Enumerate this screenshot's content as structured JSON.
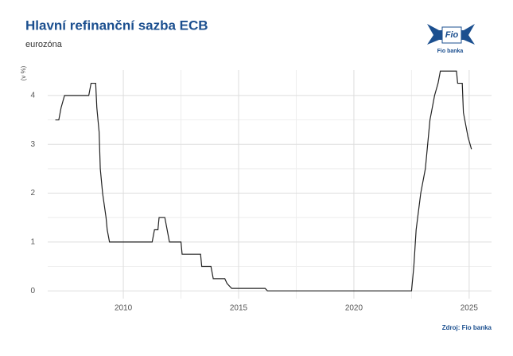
{
  "chart_data": {
    "type": "line",
    "title": "Hlavní refinanční sazba ECB",
    "subtitle": "eurozóna",
    "y_label": "(v %)",
    "source": "Zdroj: Fio banka",
    "logo_text": "Fio",
    "logo_caption": "Fio banka",
    "color": "#222222",
    "grid": true,
    "xlim": [
      2006.72,
      2025.97
    ],
    "ylim": [
      -0.16,
      4.52
    ],
    "xticks": [
      2010,
      2015,
      2020,
      2025
    ],
    "yticks": [
      0,
      1,
      2,
      3,
      4
    ],
    "x": [
      2007.05,
      2007.2,
      2007.3,
      2007.45,
      2008.5,
      2008.6,
      2008.8,
      2008.85,
      2008.95,
      2009.0,
      2009.1,
      2009.25,
      2009.3,
      2009.4,
      2011.25,
      2011.35,
      2011.5,
      2011.55,
      2011.8,
      2011.9,
      2012.0,
      2012.5,
      2012.55,
      2013.35,
      2013.4,
      2013.8,
      2013.9,
      2014.4,
      2014.5,
      2014.7,
      2016.15,
      2016.25,
      2022.5,
      2022.6,
      2022.7,
      2022.9,
      2023.1,
      2023.3,
      2023.4,
      2023.5,
      2023.65,
      2023.75,
      2024.45,
      2024.5,
      2024.7,
      2024.75,
      2024.85,
      2024.95,
      2025.1
    ],
    "values": [
      3.5,
      3.5,
      3.75,
      4.0,
      4.0,
      4.25,
      4.25,
      3.75,
      3.25,
      2.5,
      2.0,
      1.5,
      1.25,
      1.0,
      1.0,
      1.25,
      1.25,
      1.5,
      1.5,
      1.25,
      1.0,
      1.0,
      0.75,
      0.75,
      0.5,
      0.5,
      0.25,
      0.25,
      0.15,
      0.05,
      0.05,
      0.0,
      0.0,
      0.5,
      1.25,
      2.0,
      2.5,
      3.5,
      3.75,
      4.0,
      4.25,
      4.5,
      4.5,
      4.25,
      4.25,
      3.65,
      3.4,
      3.15,
      2.9
    ]
  }
}
